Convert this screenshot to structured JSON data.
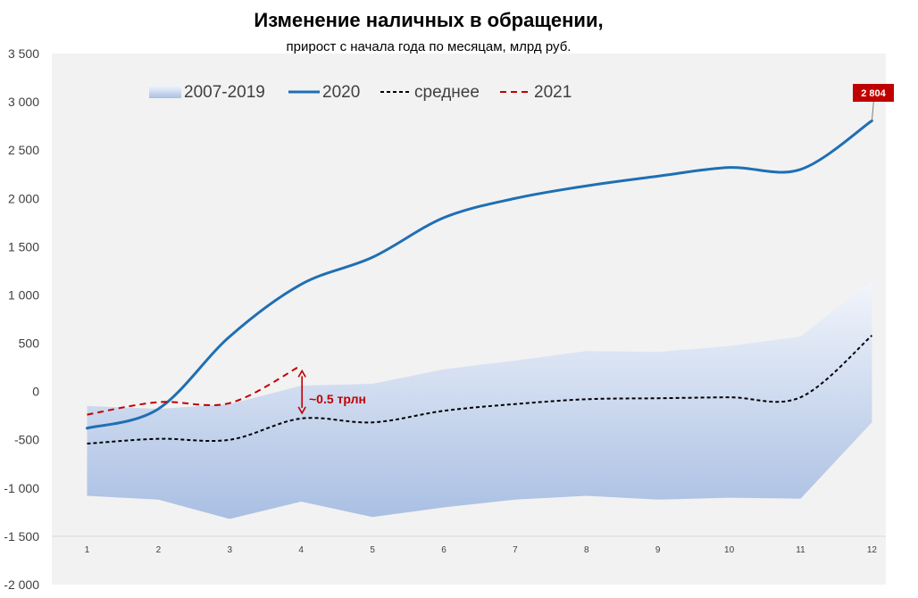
{
  "chart_data": {
    "type": "line",
    "title": "Изменение наличных в обращении,",
    "subtitle": "прирост с начала года по месяцам, млрд руб.",
    "x": [
      1,
      2,
      3,
      4,
      5,
      6,
      7,
      8,
      9,
      10,
      11,
      12
    ],
    "x_tick_labels": [
      "1",
      "2",
      "3",
      "4",
      "5",
      "6",
      "7",
      "8",
      "9",
      "10",
      "11",
      "12"
    ],
    "y_tick_labels": [
      "3 500",
      "3 000",
      "2 500",
      "2 000",
      "1 500",
      "1 000",
      "500",
      "0",
      "-500",
      "-1 000",
      "-1 500",
      "-2 000"
    ],
    "ylim": [
      -2000,
      3500
    ],
    "grid": false,
    "legend_placement": "top-left",
    "band": {
      "name": "2007-2019",
      "upper": [
        -150,
        -180,
        -130,
        60,
        80,
        230,
        320,
        420,
        410,
        470,
        570,
        1150
      ],
      "lower": [
        -1080,
        -1120,
        -1320,
        -1140,
        -1300,
        -1200,
        -1120,
        -1080,
        -1120,
        -1100,
        -1110,
        -320
      ]
    },
    "series": [
      {
        "name": "2020",
        "style": "solid",
        "color": "#1F6FB4",
        "x": [
          1,
          2,
          3,
          4,
          5,
          6,
          7,
          8,
          9,
          10,
          11,
          12
        ],
        "values": [
          -380,
          -180,
          570,
          1110,
          1390,
          1800,
          2000,
          2130,
          2230,
          2320,
          2300,
          2804
        ]
      },
      {
        "name": "среднее",
        "style": "dashed",
        "color": "#000000",
        "x": [
          1,
          2,
          3,
          4,
          5,
          6,
          7,
          8,
          9,
          10,
          11,
          12
        ],
        "values": [
          -540,
          -490,
          -500,
          -280,
          -320,
          -200,
          -130,
          -80,
          -70,
          -60,
          -60,
          580
        ]
      },
      {
        "name": "2021",
        "style": "dashed",
        "color": "#C00000",
        "x": [
          1,
          2,
          3,
          4
        ],
        "values": [
          -240,
          -110,
          -120,
          270
        ]
      }
    ],
    "annotations": [
      {
        "text": "2 804",
        "x": 12,
        "y": 2804,
        "style": "label-box",
        "color": "#C00000"
      },
      {
        "text": "~0.5 трлн",
        "x": 4,
        "y_from": 270,
        "y_to": -280,
        "style": "double-arrow",
        "color": "#C00000"
      }
    ],
    "colors": {
      "series_2020": "#1F6FB4",
      "average": "#000000",
      "series_2021": "#C00000",
      "band_top": "#F2F5FB",
      "band_bottom": "#A9BFE3",
      "axis_text": "#404040",
      "plot_background": "#F2F2F2"
    }
  }
}
